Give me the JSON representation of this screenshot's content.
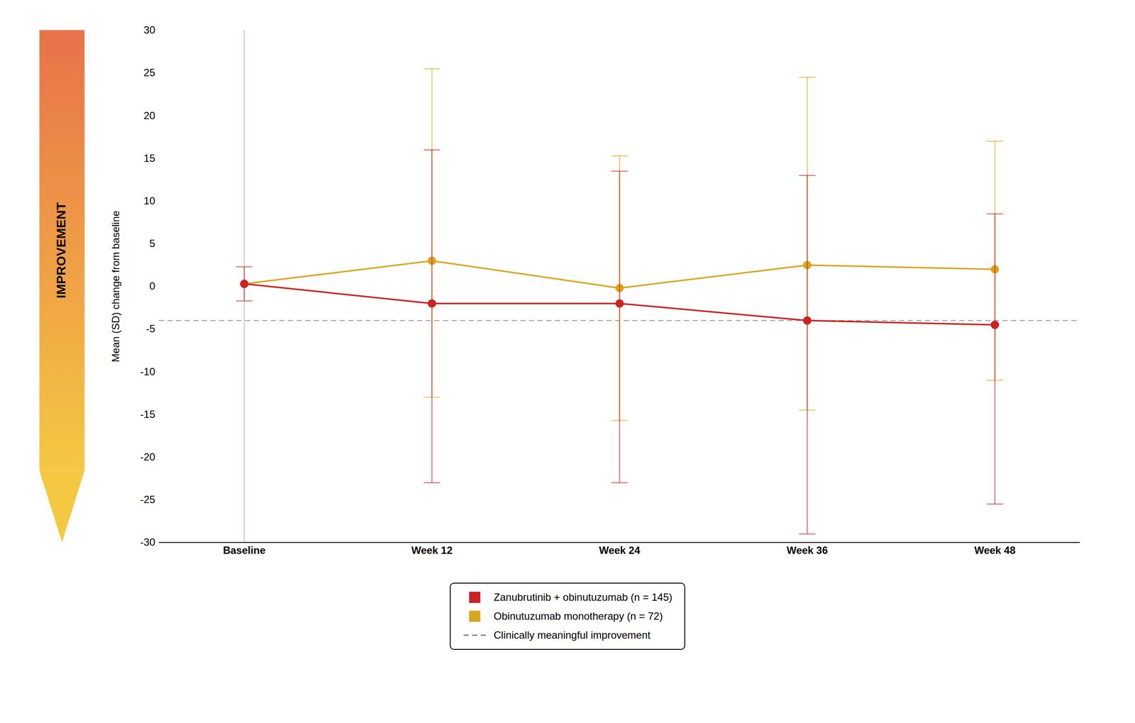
{
  "chart_data": {
    "type": "line",
    "categories": [
      "Baseline",
      "Week 12",
      "Week 24",
      "Week 36",
      "Week 48"
    ],
    "ylabel": "Mean (SD) change from baseline",
    "ylim": [
      -30,
      30
    ],
    "yticks": [
      -30,
      -25,
      -20,
      -15,
      -10,
      -5,
      0,
      5,
      10,
      15,
      20,
      25,
      30
    ],
    "grid": false,
    "legend": "bottom",
    "series": [
      {
        "name": "Zanubrutinib + obinutuzumab (n = 145)",
        "color": "#CC2222",
        "marker": "o",
        "values": [
          0.3,
          -2.0,
          -2.0,
          -4.0,
          -4.5
        ],
        "error_upper": [
          2.0,
          18.0,
          15.5,
          17.0,
          13.0
        ],
        "error_lower": [
          2.0,
          21.0,
          21.0,
          25.0,
          21.0
        ]
      },
      {
        "name": "Obinutuzumab monotherapy (n = 72)",
        "color": "#DAA520",
        "marker": "o",
        "values": [
          0.3,
          3.0,
          -0.2,
          2.5,
          2.0
        ],
        "error_upper": [
          null,
          22.5,
          15.5,
          22.0,
          15.0
        ],
        "error_lower": [
          null,
          16.0,
          15.5,
          17.0,
          13.0
        ]
      },
      {
        "name": "Clinically meaningful improvement",
        "type": "rule",
        "value": -4.0,
        "color": "gray",
        "line_style": "dashed"
      }
    ],
    "annotations": [
      {
        "text": "IMPROVEMENT",
        "colors": [
          "#E8724A",
          "#F5C842"
        ]
      }
    ]
  }
}
